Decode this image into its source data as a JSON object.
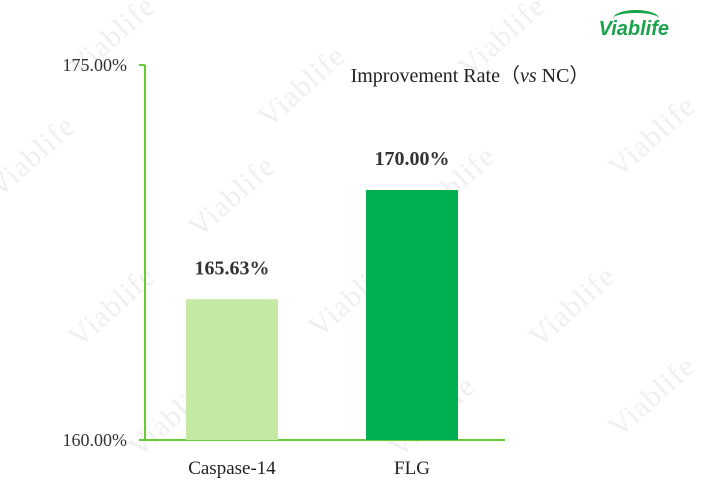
{
  "logo": {
    "text": "Viablife",
    "color": "#1aa34a"
  },
  "watermark_text": "Viablife",
  "chart_data": {
    "type": "bar",
    "title": "Improvement Rate（vs NC）",
    "title_prefix": "Improvement Rate（",
    "title_italic": "vs",
    "title_suffix": " NC）",
    "categories": [
      "Caspase-14",
      "FLG"
    ],
    "values": [
      165.63,
      170.0
    ],
    "value_labels": [
      "165.63%",
      "170.00%"
    ],
    "colors": [
      "#c3e9a5",
      "#00b050"
    ],
    "ylim": [
      160,
      175
    ],
    "ytick_labels": [
      "160.00%",
      "175.00%"
    ],
    "ytick_values": [
      160,
      175
    ],
    "axis_color": "#66cc33",
    "grid": false,
    "legend": "none"
  }
}
